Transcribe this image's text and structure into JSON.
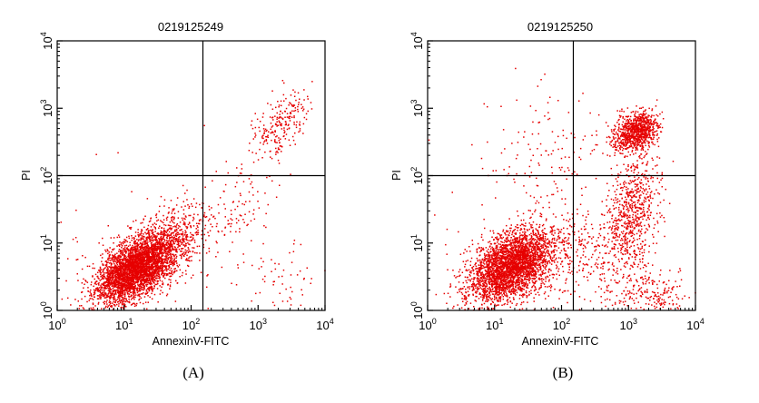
{
  "figure": {
    "panel_captions": [
      "(A)",
      "(B)"
    ]
  },
  "chart_data": [
    {
      "type": "scatter",
      "title": "0219125249",
      "xlabel": "AnnexinV-FITC",
      "ylabel": "PI",
      "x_scale": "log",
      "y_scale": "log",
      "xlim": [
        1,
        10000
      ],
      "ylim": [
        1,
        10000
      ],
      "x_ticks": [
        {
          "base": "10",
          "exp": "0"
        },
        {
          "base": "10",
          "exp": "1"
        },
        {
          "base": "10",
          "exp": "2"
        },
        {
          "base": "10",
          "exp": "3"
        },
        {
          "base": "10",
          "exp": "4"
        }
      ],
      "y_ticks": [
        {
          "base": "10",
          "exp": "0"
        },
        {
          "base": "10",
          "exp": "1"
        },
        {
          "base": "10",
          "exp": "2"
        },
        {
          "base": "10",
          "exp": "3"
        },
        {
          "base": "10",
          "exp": "4"
        }
      ],
      "quadrant_gate": {
        "x": 150,
        "y": 100
      },
      "point_color": "#e60000",
      "seed": 11,
      "populations": [
        {
          "n": 3600,
          "center": [
            15,
            4.2
          ],
          "spread": [
            0.3,
            0.26
          ],
          "corr": 0.55
        },
        {
          "n": 500,
          "center": [
            45,
            10
          ],
          "spread": [
            0.32,
            0.28
          ],
          "corr": 0.45
        },
        {
          "n": 130,
          "center": [
            400,
            30
          ],
          "spread": [
            0.35,
            0.4
          ],
          "corr": 0.5
        },
        {
          "n": 230,
          "center": [
            2200,
            600
          ],
          "spread": [
            0.22,
            0.25
          ],
          "corr": 0.5
        },
        {
          "n": 60,
          "center": [
            2500,
            3.5
          ],
          "spread": [
            0.35,
            0.25
          ],
          "corr": 0
        },
        {
          "n": 90,
          "center": [
            12,
            4
          ],
          "spread": [
            0.85,
            0.75
          ],
          "corr": 0
        }
      ]
    },
    {
      "type": "scatter",
      "title": "0219125250",
      "xlabel": "AnnexinV-FITC",
      "ylabel": "PI",
      "x_scale": "log",
      "y_scale": "log",
      "xlim": [
        1,
        10000
      ],
      "ylim": [
        1,
        10000
      ],
      "x_ticks": [
        {
          "base": "10",
          "exp": "0"
        },
        {
          "base": "10",
          "exp": "1"
        },
        {
          "base": "10",
          "exp": "2"
        },
        {
          "base": "10",
          "exp": "3"
        },
        {
          "base": "10",
          "exp": "4"
        }
      ],
      "y_ticks": [
        {
          "base": "10",
          "exp": "0"
        },
        {
          "base": "10",
          "exp": "1"
        },
        {
          "base": "10",
          "exp": "2"
        },
        {
          "base": "10",
          "exp": "3"
        },
        {
          "base": "10",
          "exp": "4"
        }
      ],
      "quadrant_gate": {
        "x": 150,
        "y": 100
      },
      "point_color": "#e60000",
      "seed": 23,
      "populations": [
        {
          "n": 3200,
          "center": [
            18,
            4.5
          ],
          "spread": [
            0.32,
            0.27
          ],
          "corr": 0.45
        },
        {
          "n": 650,
          "center": [
            1100,
            25
          ],
          "spread": [
            0.2,
            0.45
          ],
          "corr": 0.35
        },
        {
          "n": 900,
          "center": [
            1300,
            450
          ],
          "spread": [
            0.17,
            0.15
          ],
          "corr": 0.3
        },
        {
          "n": 280,
          "center": [
            350,
            6
          ],
          "spread": [
            0.45,
            0.38
          ],
          "corr": 0
        },
        {
          "n": 200,
          "center": [
            2200,
            1.6
          ],
          "spread": [
            0.3,
            0.18
          ],
          "corr": 0
        },
        {
          "n": 140,
          "center": [
            80,
            200
          ],
          "spread": [
            0.55,
            0.45
          ],
          "corr": 0
        },
        {
          "n": 120,
          "center": [
            15,
            5
          ],
          "spread": [
            0.85,
            0.7
          ],
          "corr": 0
        }
      ]
    }
  ]
}
